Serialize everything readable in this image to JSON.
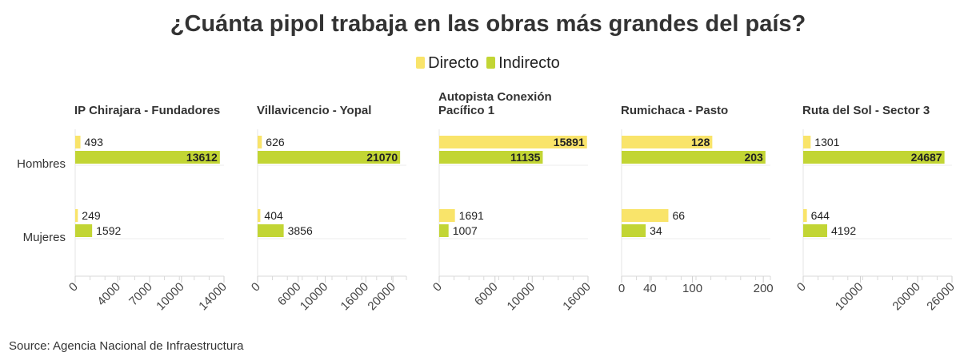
{
  "colors": {
    "directo": "#f9e46a",
    "indirecto": "#c2d534"
  },
  "legend": {
    "directo": "Directo",
    "indirecto": "Indirecto"
  },
  "source": "Source: Agencia Nacional de Infraestructura",
  "chart_data": {
    "type": "bar",
    "orientation": "horizontal",
    "title": "¿Cuánta pipol trabaja en las obras más grandes del país?",
    "categories": [
      "Hombres",
      "Mujeres"
    ],
    "legend_position": "top-center",
    "panels": [
      {
        "title": [
          "IP Chirajara - Fundadores"
        ],
        "xlim": [
          0,
          14000
        ],
        "ticks": [
          0,
          4000,
          7000,
          10000,
          14000
        ],
        "tick_rotation": 45,
        "series": [
          {
            "name": "Directo",
            "values": [
              493,
              249
            ]
          },
          {
            "name": "Indirecto",
            "values": [
              13612,
              1592
            ]
          }
        ]
      },
      {
        "title": [
          "Villavicencio - Yopal"
        ],
        "xlim": [
          0,
          22000
        ],
        "ticks": [
          0,
          6000,
          10000,
          16000,
          20000
        ],
        "tick_rotation": 45,
        "series": [
          {
            "name": "Directo",
            "values": [
              626,
              404
            ]
          },
          {
            "name": "Indirecto",
            "values": [
              21070,
              3856
            ]
          }
        ]
      },
      {
        "title": [
          "Autopista Conexión",
          "Pacífico 1"
        ],
        "xlim": [
          0,
          16000
        ],
        "ticks": [
          0,
          6000,
          10000,
          16000
        ],
        "tick_rotation": 45,
        "series": [
          {
            "name": "Directo",
            "values": [
              15891,
              1691
            ]
          },
          {
            "name": "Indirecto",
            "values": [
              11135,
              1007
            ]
          }
        ]
      },
      {
        "title": [
          "Rumichaca - Pasto"
        ],
        "xlim": [
          0,
          210
        ],
        "ticks": [
          0,
          40,
          100,
          200
        ],
        "tick_rotation": 0,
        "series": [
          {
            "name": "Directo",
            "values": [
              128,
              66
            ]
          },
          {
            "name": "Indirecto",
            "values": [
              203,
              34
            ]
          }
        ]
      },
      {
        "title": [
          "Ruta del Sol - Sector 3"
        ],
        "xlim": [
          0,
          26000
        ],
        "ticks": [
          0,
          10000,
          20000,
          26000
        ],
        "tick_rotation": 45,
        "series": [
          {
            "name": "Directo",
            "values": [
              1301,
              644
            ]
          },
          {
            "name": "Indirecto",
            "values": [
              24687,
              4192
            ]
          }
        ]
      }
    ]
  }
}
